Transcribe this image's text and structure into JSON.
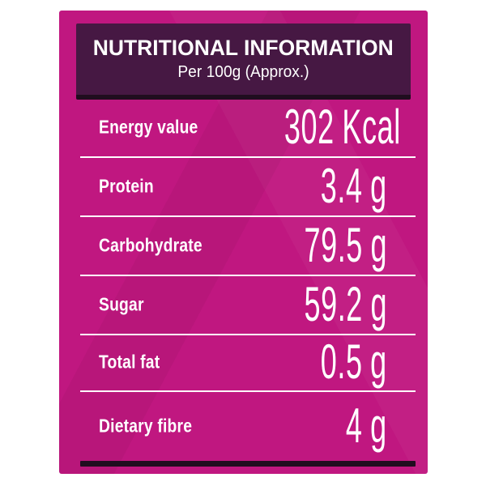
{
  "label": {
    "header": {
      "title": "NUTRITIONAL INFORMATION",
      "subtitle": "Per 100g (Approx.)"
    },
    "rows": [
      {
        "name": "Energy value",
        "value": "302",
        "unit": "Kcal"
      },
      {
        "name": "Protein",
        "value": "3.4",
        "unit": "g"
      },
      {
        "name": "Carbohydrate",
        "value": "79.5",
        "unit": "g"
      },
      {
        "name": "Sugar",
        "value": "59.2",
        "unit": "g"
      },
      {
        "name": "Total fat",
        "value": "0.5",
        "unit": "g"
      },
      {
        "name": "Dietary fibre",
        "value": "4",
        "unit": "g"
      }
    ],
    "colors": {
      "card_pink": "#c01780",
      "header_purple": "#461843",
      "shadow_dark": "#200d1f",
      "divider_white": "#ffffff",
      "text_white": "#ffffff"
    }
  }
}
